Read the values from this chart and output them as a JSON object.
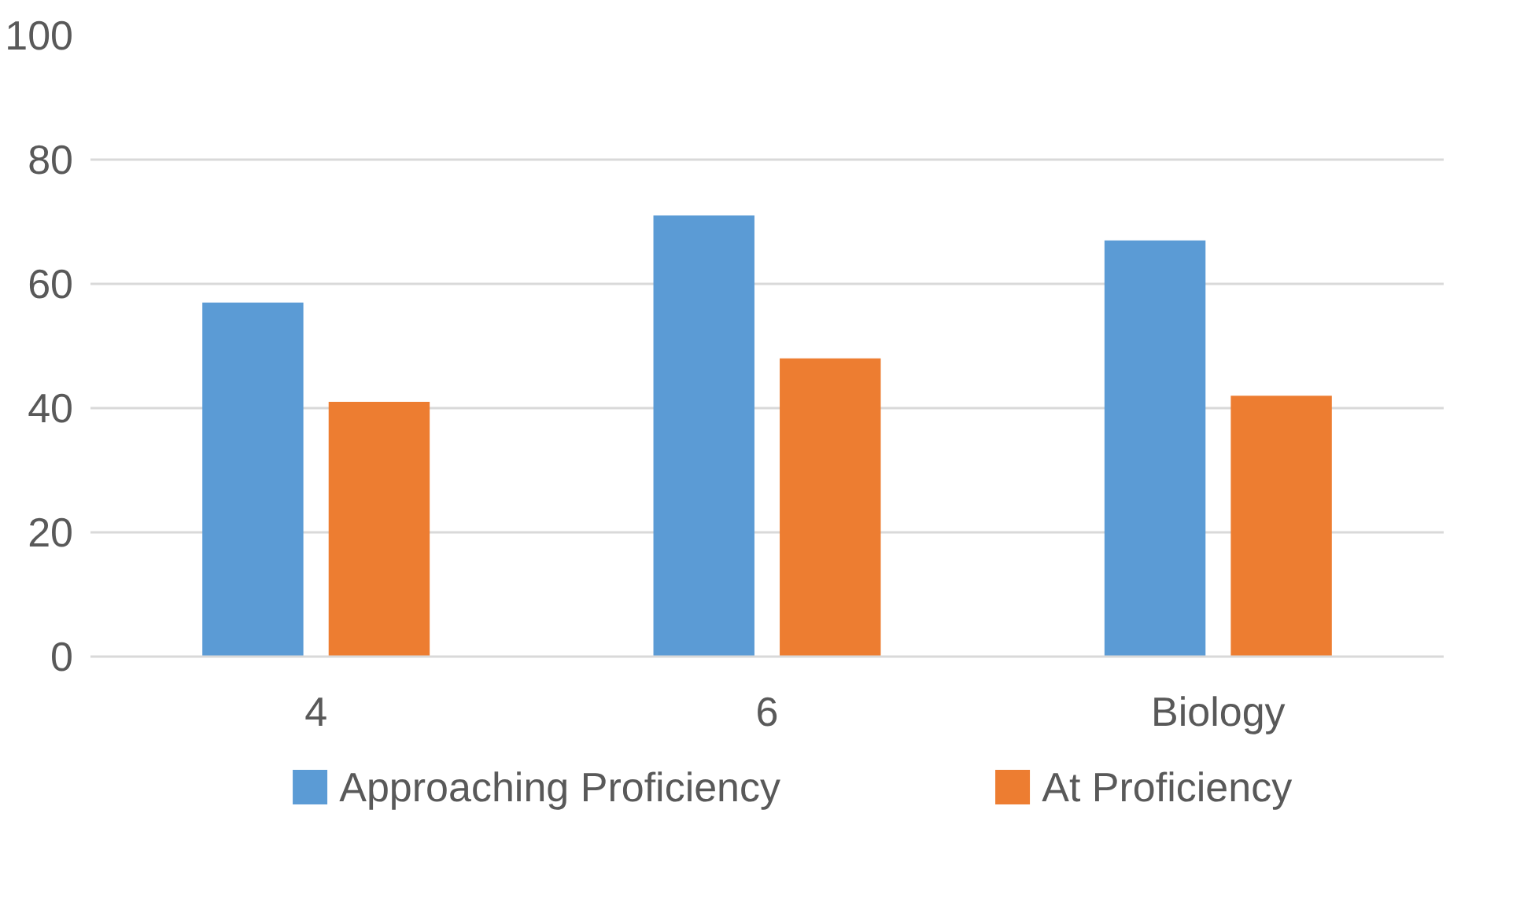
{
  "chart_data": {
    "type": "bar",
    "categories": [
      "4",
      "6",
      "Biology"
    ],
    "series": [
      {
        "name": "Approaching Proficiency",
        "color": "#5b9bd5",
        "values": [
          57,
          71,
          67
        ]
      },
      {
        "name": "At Proficiency",
        "color": "#ed7d31",
        "values": [
          41,
          48,
          42
        ]
      }
    ],
    "ylim": [
      0,
      100
    ],
    "yticks": [
      0,
      20,
      40,
      60,
      80,
      100
    ],
    "grid": "y",
    "legend": "bottom"
  }
}
